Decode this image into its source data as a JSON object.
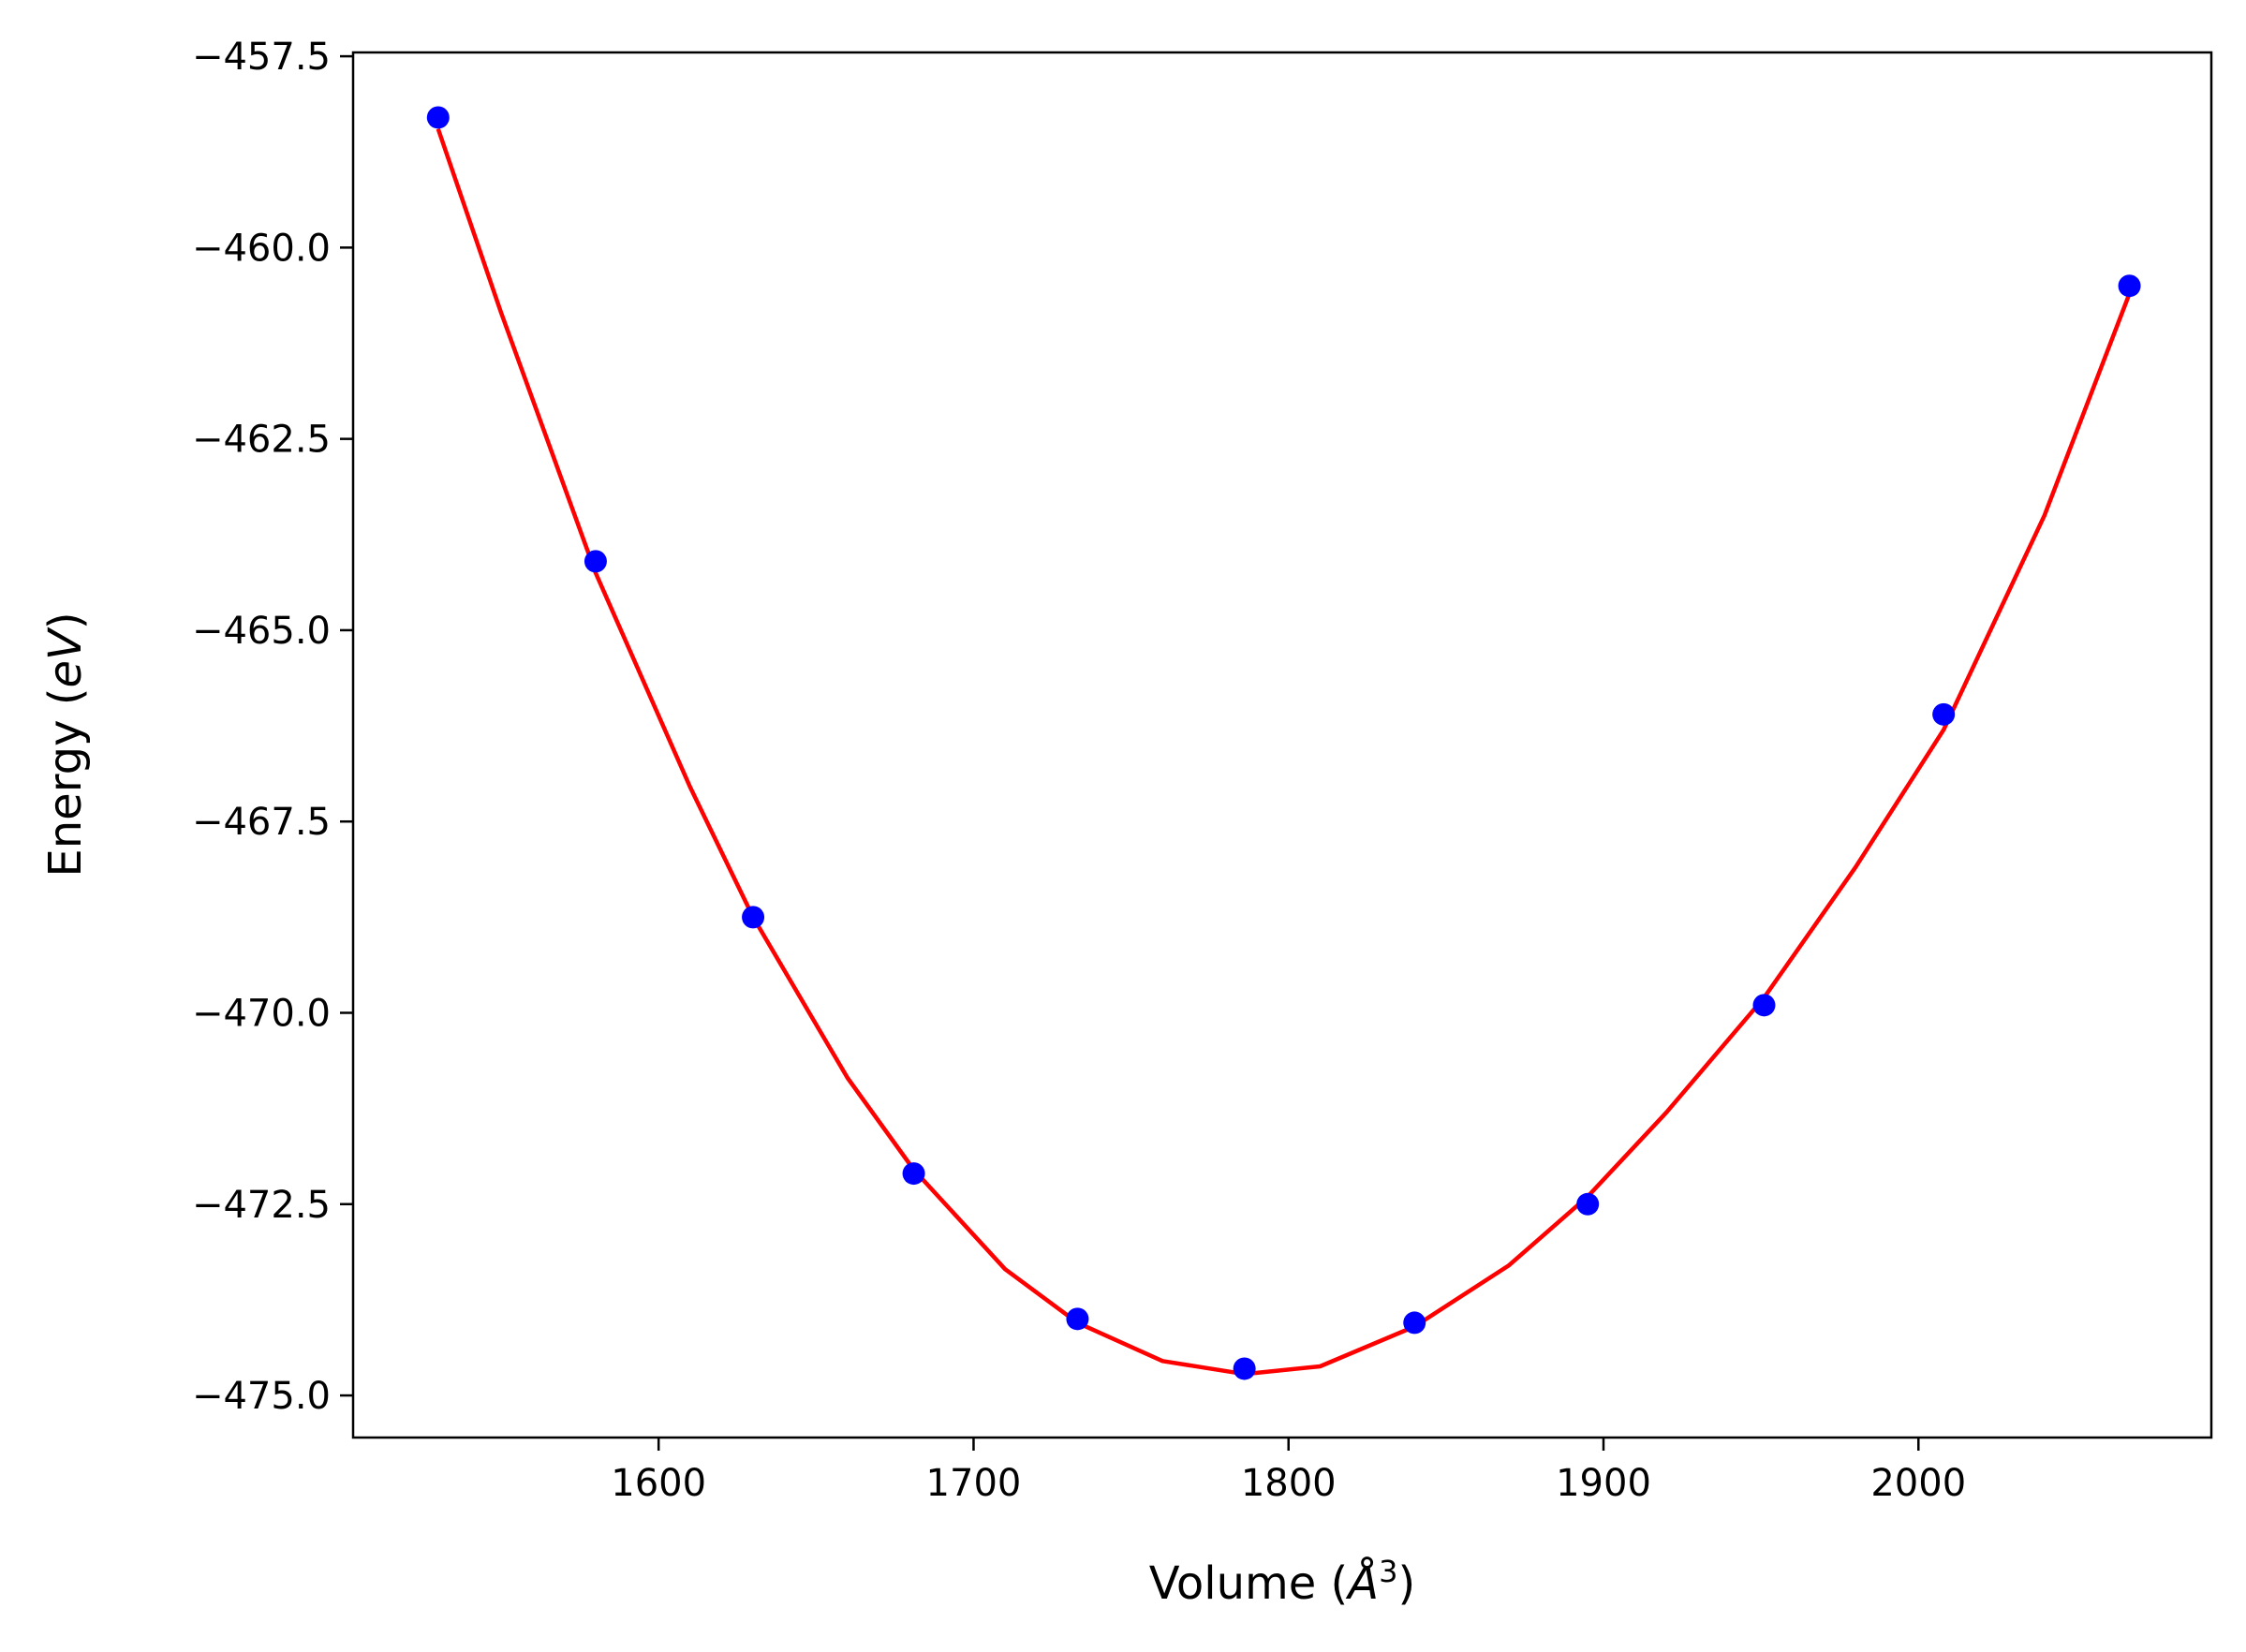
{
  "chart_data": {
    "type": "scatter",
    "title": "",
    "xlabel": "Volume (Å³)",
    "xlabel_parts": {
      "prefix": "Volume (",
      "symbol": "Å",
      "exponent": "3",
      "suffix": ")"
    },
    "ylabel": "Energy (eV)",
    "ylabel_parts": {
      "prefix": "Energy (",
      "unit": "eV",
      "suffix": ")"
    },
    "xlim": [
      1503,
      2093
    ],
    "ylim": [
      -475.55,
      -457.45
    ],
    "x_ticks": [
      1600,
      1700,
      1800,
      1900,
      2000
    ],
    "x_tick_labels": [
      "1600",
      "1700",
      "1800",
      "1900",
      "2000"
    ],
    "y_ticks": [
      -457.5,
      -460.0,
      -462.5,
      -465.0,
      -467.5,
      -470.0,
      -472.5,
      -475.0
    ],
    "y_tick_labels": [
      "−457.5",
      "−460.0",
      "−462.5",
      "−465.0",
      "−467.5",
      "−470.0",
      "−472.5",
      "−475.0"
    ],
    "grid": false,
    "legend": "none",
    "series": [
      {
        "kind": "points",
        "color": "#0000ff",
        "x": [
          1530,
          1580,
          1630,
          1681,
          1733,
          1786,
          1840,
          1895,
          1951,
          2008,
          2067
        ],
        "y": [
          -458.3,
          -464.1,
          -468.75,
          -472.1,
          -474.0,
          -474.65,
          -474.05,
          -472.5,
          -469.9,
          -466.1,
          -460.5
        ]
      },
      {
        "kind": "fit-curve",
        "color": "#ff0000",
        "x": [
          1530,
          1550,
          1580,
          1610,
          1630,
          1660,
          1681,
          1710,
          1733,
          1760,
          1786,
          1810,
          1840,
          1870,
          1895,
          1920,
          1951,
          1980,
          2008,
          2040,
          2067
        ],
        "y": [
          -458.45,
          -460.85,
          -464.25,
          -467.05,
          -468.75,
          -470.85,
          -472.05,
          -473.35,
          -474.05,
          -474.55,
          -474.72,
          -474.62,
          -474.1,
          -473.3,
          -472.4,
          -471.3,
          -469.8,
          -468.1,
          -466.3,
          -463.5,
          -460.6
        ]
      }
    ]
  }
}
